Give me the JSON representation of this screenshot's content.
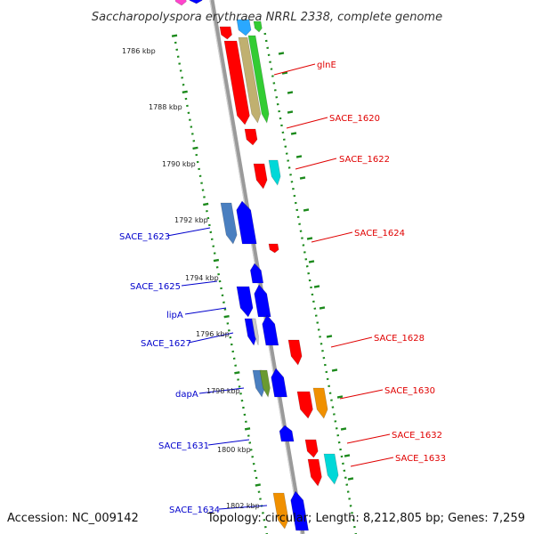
{
  "title": "Saccharopolyspora erythraea NRRL 2338, complete genome",
  "accession": "Accession: NC_009142",
  "summary": "Topology: circular; Length: 8,212,805 bp; Genes: 7,259",
  "ticks": [
    "1786 kbp",
    "1788 kbp",
    "1790 kbp",
    "1792 kbp",
    "1794 kbp",
    "1796 kbp",
    "1798 kbp",
    "1800 kbp",
    "1802 kbp"
  ],
  "colors": {
    "backbone": "#9a9a9a",
    "forward_label": "#e00000",
    "reverse_label": "#0000cc",
    "tick_dash": "#1c8a1c",
    "red": "#ff0000",
    "blue": "#0000ff",
    "steelblue": "#4a7fc0",
    "cyan": "#00d8d8",
    "orange": "#f09000",
    "green": "#33cc33",
    "tan": "#c0b070",
    "olive": "#6a9a30",
    "pink": "#ff44cc"
  },
  "labels_right": [
    {
      "text": "glnE",
      "kind": "forward"
    },
    {
      "text": "SACE_1620",
      "kind": "forward"
    },
    {
      "text": "SACE_1622",
      "kind": "forward"
    },
    {
      "text": "SACE_1624",
      "kind": "forward"
    },
    {
      "text": "SACE_1628",
      "kind": "forward"
    },
    {
      "text": "SACE_1630",
      "kind": "forward"
    },
    {
      "text": "SACE_1632",
      "kind": "forward"
    },
    {
      "text": "SACE_1633",
      "kind": "forward"
    }
  ],
  "labels_left": [
    {
      "text": "SACE_1623",
      "kind": "reverse"
    },
    {
      "text": "SACE_1625",
      "kind": "reverse"
    },
    {
      "text": "lipA",
      "kind": "reverse"
    },
    {
      "text": "SACE_1627",
      "kind": "reverse"
    },
    {
      "text": "dapA",
      "kind": "reverse"
    },
    {
      "text": "SACE_1631",
      "kind": "reverse"
    },
    {
      "text": "SACE_1634",
      "kind": "reverse"
    }
  ]
}
